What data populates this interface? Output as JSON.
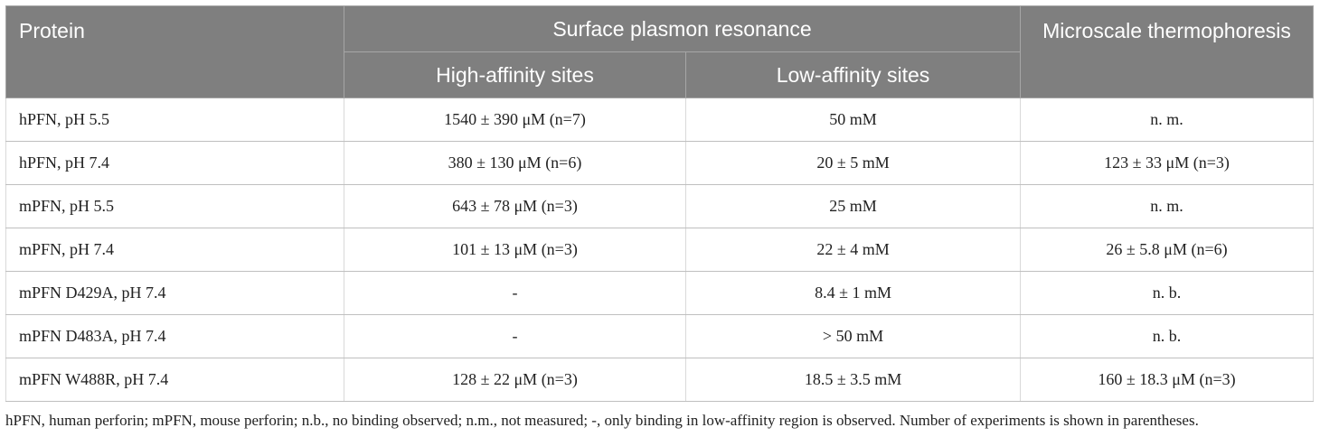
{
  "header": {
    "protein": "Protein",
    "spr": "Surface plasmon resonance",
    "mst": "Microscale thermophoresis",
    "high_affinity": "High-affinity sites",
    "low_affinity": "Low-affinity sites"
  },
  "rows": [
    {
      "protein": "hPFN, pH 5.5",
      "high": "1540 ± 390 μM (n=7)",
      "low": "50 mM",
      "mst": "n. m."
    },
    {
      "protein": "hPFN, pH 7.4",
      "high": "380 ± 130 μM (n=6)",
      "low": "20 ± 5 mM",
      "mst": "123 ± 33 μM (n=3)"
    },
    {
      "protein": "mPFN, pH 5.5",
      "high": "643 ± 78 μM (n=3)",
      "low": "25 mM",
      "mst": "n. m."
    },
    {
      "protein": "mPFN, pH 7.4",
      "high": "101 ± 13 μM (n=3)",
      "low": "22 ± 4 mM",
      "mst": "26 ± 5.8 μM (n=6)"
    },
    {
      "protein": "mPFN D429A, pH 7.4",
      "high": "-",
      "low": "8.4 ± 1 mM",
      "mst": "n. b."
    },
    {
      "protein": "mPFN D483A, pH 7.4",
      "high": "-",
      "low": "> 50 mM",
      "mst": "n. b."
    },
    {
      "protein": "mPFN W488R, pH 7.4",
      "high": "128 ± 22 μM (n=3)",
      "low": "18.5 ± 3.5 mM",
      "mst": "160 ± 18.3 μM (n=3)"
    }
  ],
  "footnote": "hPFN, human perforin; mPFN, mouse perforin; n.b., no binding observed; n.m., not measured; -, only binding in low-affinity region is observed. Number of experiments is shown in parentheses."
}
